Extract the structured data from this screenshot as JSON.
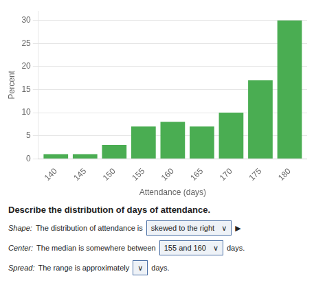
{
  "chart_data": {
    "type": "bar",
    "x": [
      140,
      145,
      150,
      155,
      160,
      165,
      170,
      175,
      180
    ],
    "values": [
      1,
      1,
      3,
      7,
      8,
      7,
      10,
      17,
      30
    ],
    "color": "#4aad52",
    "xlabel": "Attendance (days)",
    "ylabel": "Percent",
    "xlim": [
      137,
      183
    ],
    "xticks": [
      140,
      145,
      150,
      155,
      160,
      165,
      170,
      175,
      180
    ],
    "ylim": [
      0,
      32
    ],
    "yticks": [
      0,
      5,
      10,
      15,
      20,
      25,
      30
    ],
    "grid": true,
    "annotations": [
      "Describe the distribution of days of attendance.",
      "Shape:",
      "The distribution of attendance is",
      "skewed to the right",
      "∨",
      "▶",
      "Center:",
      "The median is somewhere between",
      "155 and 160",
      "∨",
      "days.",
      "Spread:",
      "The range is approximately",
      "∨",
      "days."
    ]
  }
}
